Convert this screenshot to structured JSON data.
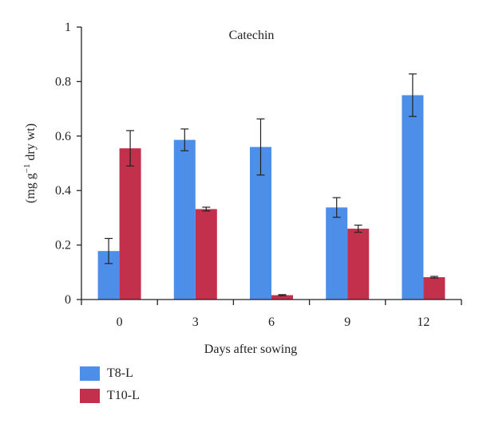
{
  "chart_data": {
    "type": "bar",
    "title": "Catechin",
    "xlabel": "Days after sowing",
    "ylabel_main": "(mg g",
    "ylabel_sup": "−1",
    "ylabel_rest": " dry wt)",
    "categories": [
      "0",
      "3",
      "6",
      "9",
      "12"
    ],
    "ylim": [
      0,
      1
    ],
    "yticks": [
      "0",
      "0.2",
      "0.4",
      "0.6",
      "0.8",
      "1"
    ],
    "ytick_values": [
      0,
      0.2,
      0.4,
      0.6,
      0.8,
      1
    ],
    "series": [
      {
        "name": "T8-L",
        "color": "#4d8fe8",
        "values": [
          0.178,
          0.586,
          0.56,
          0.338,
          0.75
        ],
        "errors": [
          0.046,
          0.04,
          0.103,
          0.036,
          0.078
        ]
      },
      {
        "name": "T10-L",
        "color": "#c3304b",
        "values": [
          0.555,
          0.332,
          0.016,
          0.26,
          0.082
        ],
        "errors": [
          0.065,
          0.007,
          0.002,
          0.013,
          0.003
        ]
      }
    ],
    "legend_position": "bottom-left"
  }
}
